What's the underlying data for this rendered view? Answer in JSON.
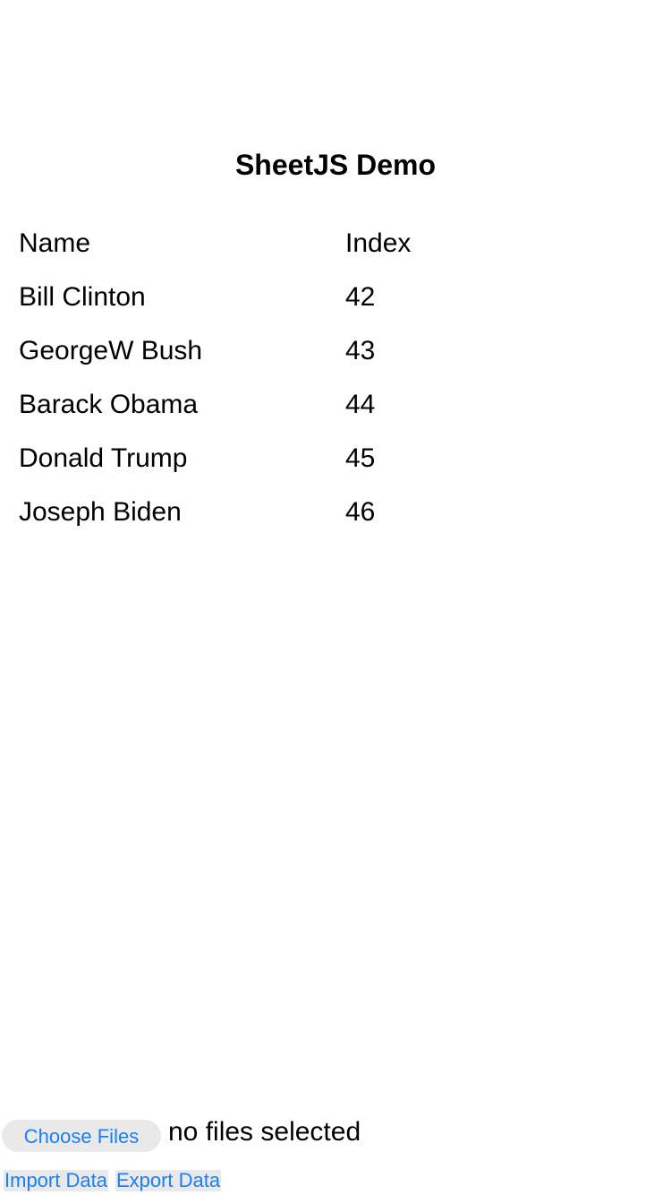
{
  "title": "SheetJS Demo",
  "table": {
    "headers": [
      "Name",
      "Index"
    ],
    "rows": [
      [
        "Bill Clinton",
        "42"
      ],
      [
        "GeorgeW Bush",
        "43"
      ],
      [
        "Barack Obama",
        "44"
      ],
      [
        "Donald Trump",
        "45"
      ],
      [
        "Joseph Biden",
        "46"
      ]
    ]
  },
  "file_input": {
    "button_label": "Choose Files",
    "status": "no files selected"
  },
  "actions": {
    "import_label": "Import Data",
    "export_label": "Export Data"
  },
  "colors": {
    "accent": "#1a7ef5",
    "button_bg": "#e9e9e9"
  }
}
